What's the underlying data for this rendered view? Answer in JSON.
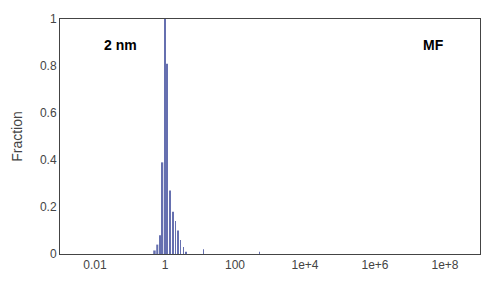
{
  "chart_data": {
    "type": "bar",
    "ylabel": "Fraction",
    "annotations": [
      "2 nm",
      "MF"
    ],
    "x": [
      0.501187,
      0.60256,
      0.724436,
      0.851138,
      1,
      1.174898,
      1.412538,
      1.659587,
      1.995262,
      2.344229,
      2.818383,
      3.311311,
      3.981072,
      12.589254,
      501.187234
    ],
    "values": [
      0.015,
      0.04,
      0.08,
      0.39,
      1.0,
      0.81,
      0.27,
      0.18,
      0.14,
      0.1,
      0.06,
      0.03,
      0.01,
      0.02,
      0.01
    ],
    "color": "#6670b0",
    "log": "x",
    "xlim": [
      0.001,
      1000000000
    ],
    "xticks": [
      0.01,
      1,
      100,
      {
        "value": 10000,
        "label": "1e+4"
      },
      {
        "value": 1000000,
        "label": "1e+6"
      },
      {
        "value": 100000000,
        "label": "1e+8"
      }
    ],
    "ylim": [
      0,
      1.0
    ],
    "yticks": [
      0,
      0.2,
      0.4,
      0.6,
      0.8,
      1
    ],
    "grid": false
  }
}
